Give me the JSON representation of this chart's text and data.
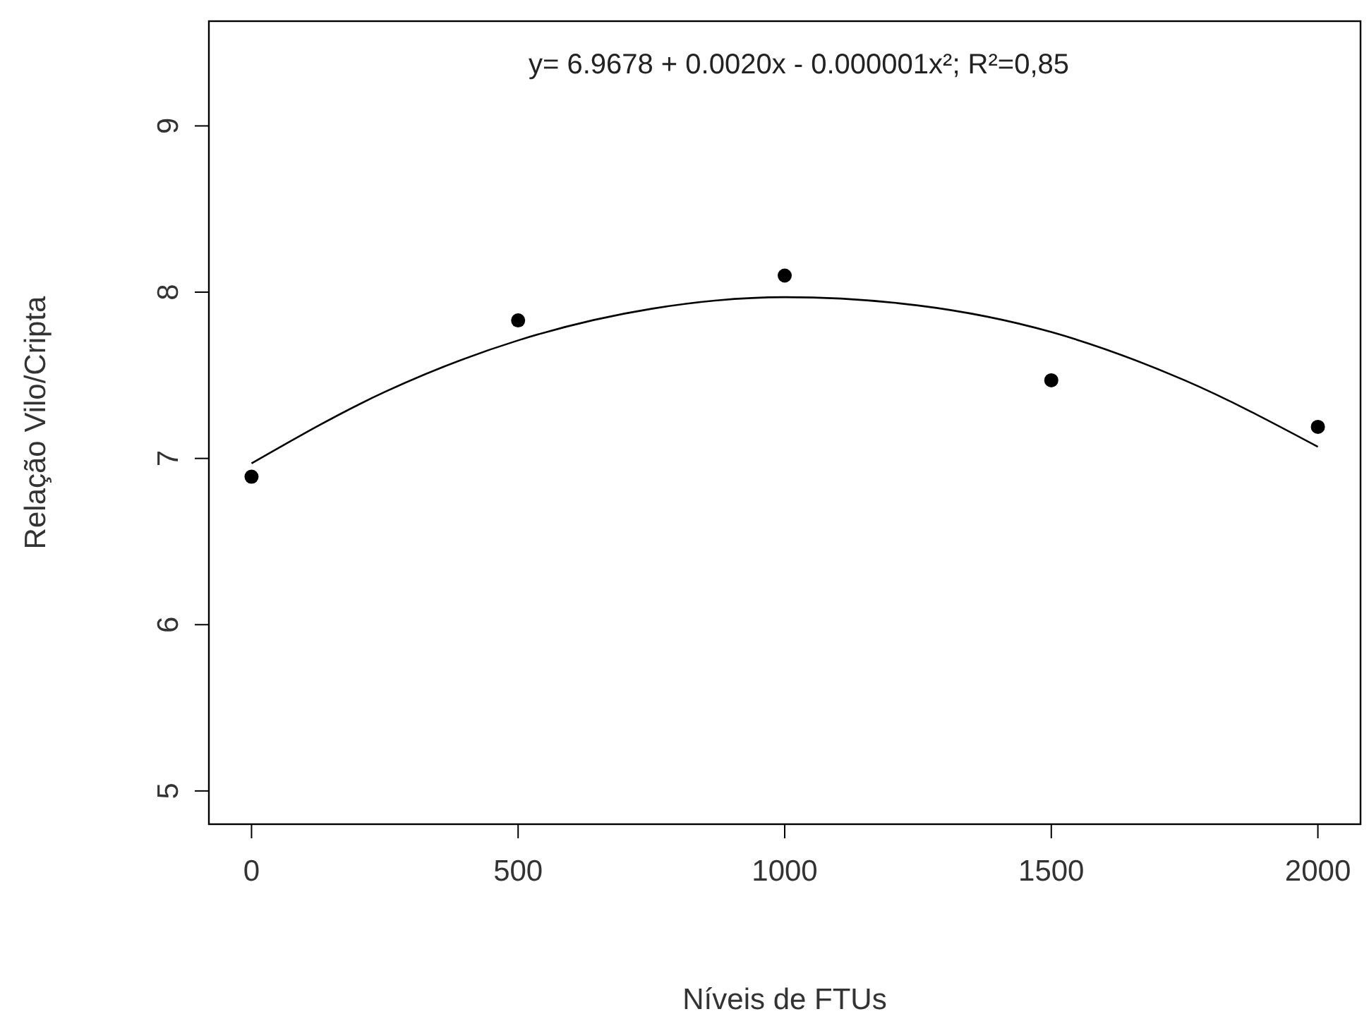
{
  "chart_data": {
    "type": "scatter",
    "xlabel": "Níveis de FTUs",
    "ylabel": "Relação Vilo/Cripta",
    "annotations": [
      "y= 6.9678 + 0.0020x - 0.000001x²;   R²=0,85"
    ],
    "series": [
      {
        "color": "#000000",
        "marker": "circle",
        "x": [
          0,
          500,
          1000,
          1500,
          2000
        ],
        "values": [
          6.89,
          7.83,
          8.1,
          7.47,
          7.19
        ]
      },
      {
        "type": "line",
        "color": "#000000",
        "marker": "none",
        "x": [
          0,
          250,
          500,
          750,
          1000,
          1250,
          1500,
          1750,
          2000
        ],
        "values": [
          6.97,
          7.4,
          7.71,
          7.9,
          7.97,
          7.92,
          7.76,
          7.47,
          7.07
        ]
      }
    ],
    "xlim": [
      -80,
      2080
    ],
    "xticks": [
      0,
      500,
      1000,
      1500,
      2000
    ],
    "ylim": [
      4.8,
      9.63
    ],
    "yticks": [
      5,
      6,
      7,
      8,
      9
    ],
    "grid": false
  }
}
